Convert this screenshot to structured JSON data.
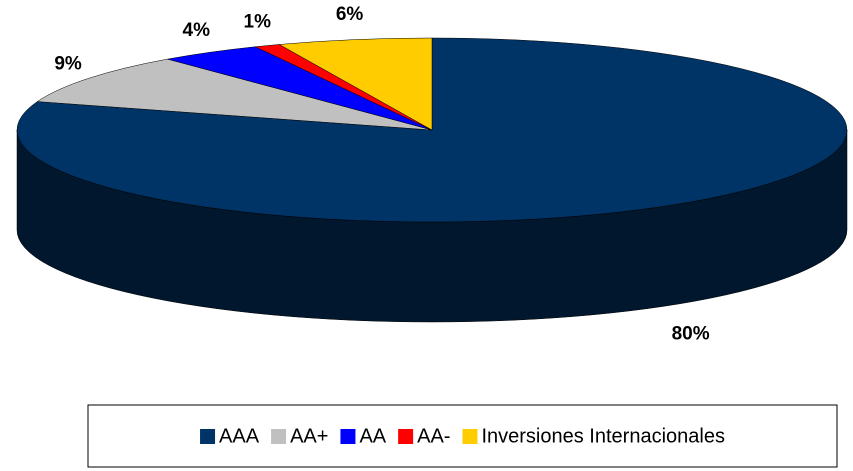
{
  "chart_data": {
    "type": "pie",
    "categories": [
      "AAA",
      "AA+",
      "AA",
      "AA-",
      "Inversiones Internacionales"
    ],
    "values": [
      80,
      9,
      4,
      1,
      6
    ],
    "value_labels": [
      "80%",
      "9%",
      "4%",
      "1%",
      "6%"
    ],
    "colors": [
      "#003366",
      "#c0c0c0",
      "#0000ff",
      "#ff0000",
      "#ffcc00"
    ],
    "legend": "bottom"
  }
}
